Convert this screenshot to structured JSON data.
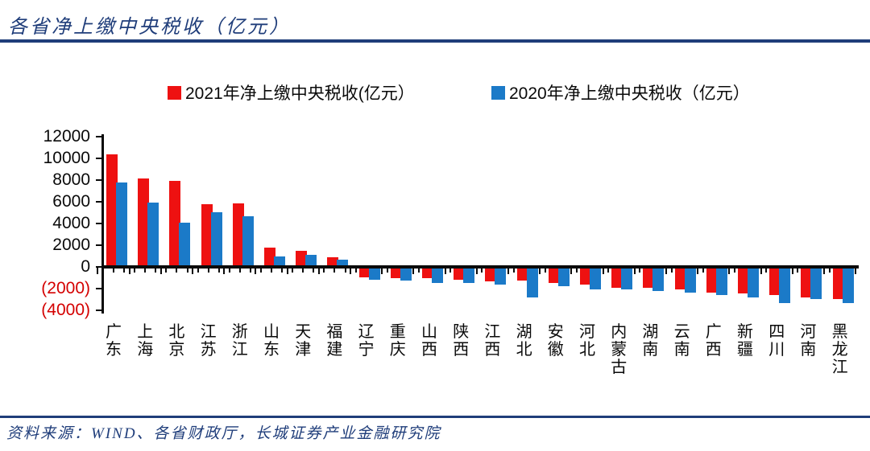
{
  "title": "各省净上缴中央税收（亿元）",
  "legend": [
    {
      "label": "2021年净上缴中央税收(亿元）",
      "color": "#ee1111"
    },
    {
      "label": "2020年净上缴中央税收（亿元）",
      "color": "#1b7ac8"
    }
  ],
  "footer": {
    "source": "资料来源：WIND、各省财政厅，长城证券产业金融研究院"
  },
  "colors": {
    "accent_navy": "#1f3d7a",
    "red_series": "#ee1111",
    "blue_series": "#1b7ac8",
    "negative_tick": "#d40000"
  },
  "chart_data": {
    "type": "bar",
    "title": "各省净上缴中央税收（亿元）",
    "categories": [
      "广东",
      "上海",
      "北京",
      "江苏",
      "浙江",
      "山东",
      "天津",
      "福建",
      "辽宁",
      "重庆",
      "山西",
      "陕西",
      "江西",
      "湖北",
      "安徽",
      "河北",
      "内蒙古",
      "湖南",
      "云南",
      "广西",
      "新疆",
      "四川",
      "河南",
      "黑龙江"
    ],
    "series": [
      {
        "name": "2021年净上缴中央税收(亿元）",
        "color": "#ee1111",
        "values": [
          10400,
          8150,
          7950,
          5800,
          5850,
          1800,
          1500,
          900,
          -950,
          -1050,
          -1050,
          -1200,
          -1350,
          -1280,
          -1450,
          -1650,
          -1950,
          -1950,
          -2100,
          -2350,
          -2450,
          -2570,
          -2850,
          -2950
        ]
      },
      {
        "name": "2020年净上缴中央税收（亿元）",
        "color": "#1b7ac8",
        "values": [
          7800,
          5900,
          4100,
          5050,
          4700,
          1000,
          1100,
          650,
          -1200,
          -1250,
          -1450,
          -1450,
          -1650,
          -2850,
          -1780,
          -2100,
          -2100,
          -2250,
          -2380,
          -2600,
          -2850,
          -3300,
          -2950,
          -3300
        ]
      }
    ],
    "ylim": [
      -4000,
      12000
    ],
    "yticks": [
      12000,
      10000,
      8000,
      6000,
      4000,
      2000,
      0,
      -2000,
      -4000
    ],
    "ytick_format": "negatives shown as (n) in red",
    "grid": false,
    "legend_position": "top"
  }
}
